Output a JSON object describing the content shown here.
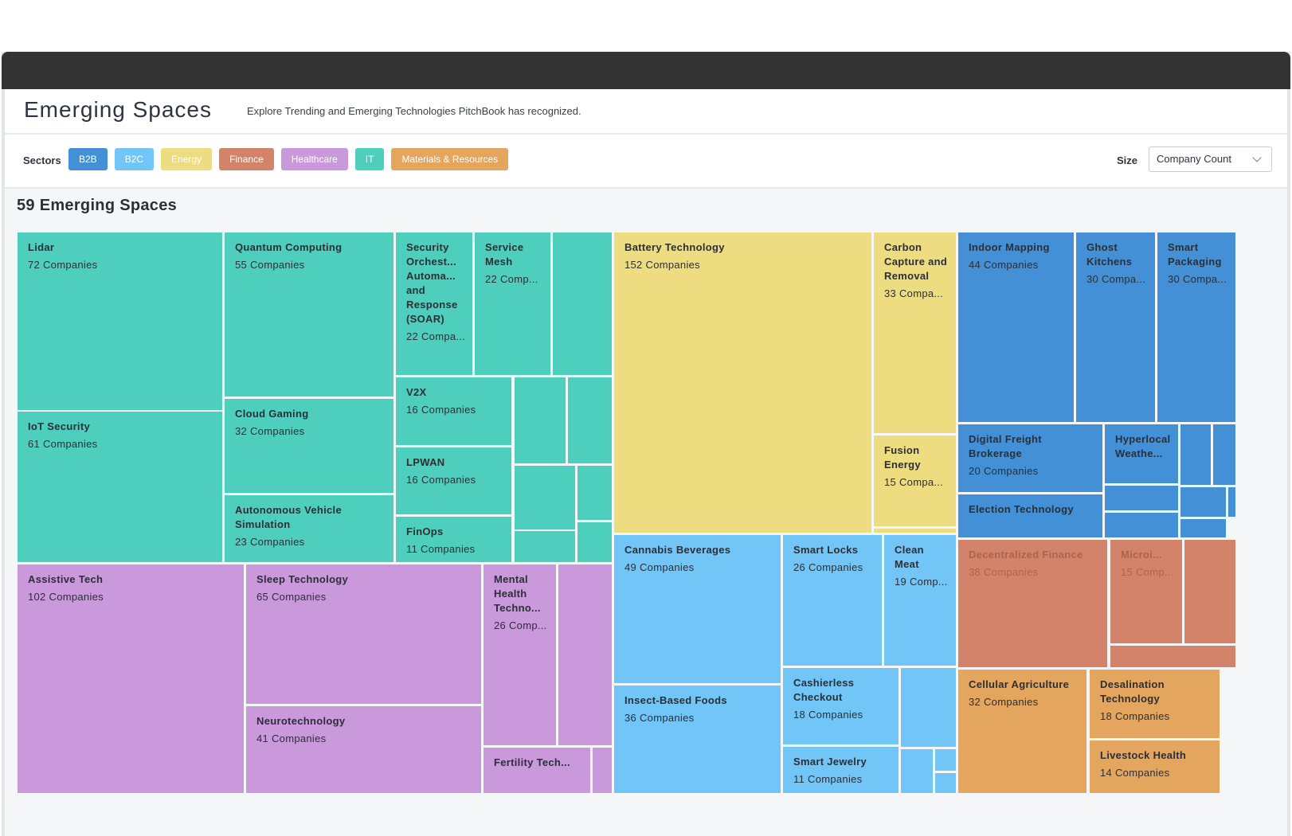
{
  "header": {
    "title": "Emerging Spaces",
    "subtitle": "Explore Trending and Emerging Technologies PitchBook has recognized."
  },
  "filters": {
    "sectors_label": "Sectors",
    "sectors": [
      {
        "label": "B2B",
        "color": "#4490d6"
      },
      {
        "label": "B2C",
        "color": "#72c5f7"
      },
      {
        "label": "Energy",
        "color": "#eedc80"
      },
      {
        "label": "Finance",
        "color": "#d4836b"
      },
      {
        "label": "Healthcare",
        "color": "#c999dc"
      },
      {
        "label": "IT",
        "color": "#4ecfbd"
      },
      {
        "label": "Materials & Resources",
        "color": "#e4a65e"
      }
    ],
    "size_label": "Size",
    "size_value": "Company Count"
  },
  "summary": {
    "count_title": "59 Emerging Spaces"
  },
  "colors": {
    "IT": "#4ecfbd",
    "Healthcare": "#c999dc",
    "Energy": "#eedc80",
    "B2C": "#72c5f7",
    "B2B": "#4490d6",
    "Finance": "#d4836b",
    "Materials": "#e4a65e"
  },
  "tiles": [
    {
      "sector": "IT",
      "name": "Lidar",
      "count": "72 Companies"
    },
    {
      "sector": "IT",
      "name": "IoT Security",
      "count": "61 Companies"
    },
    {
      "sector": "IT",
      "name": "Quantum Computing",
      "count": "55 Companies"
    },
    {
      "sector": "IT",
      "name": "Cloud Gaming",
      "count": "32 Companies"
    },
    {
      "sector": "IT",
      "name": "Autonomous Vehicle Simulation",
      "count": "23 Companies"
    },
    {
      "sector": "IT",
      "name": "Security Orchest... Automa... and Response (SOAR)",
      "count": "22 Compa..."
    },
    {
      "sector": "IT",
      "name": "Service Mesh",
      "count": "22 Comp..."
    },
    {
      "sector": "IT",
      "name": "",
      "count": ""
    },
    {
      "sector": "IT",
      "name": "V2X",
      "count": "16 Companies"
    },
    {
      "sector": "IT",
      "name": "LPWAN",
      "count": "16 Companies"
    },
    {
      "sector": "IT",
      "name": "FinOps",
      "count": "11 Companies"
    },
    {
      "sector": "IT",
      "name": "",
      "count": ""
    },
    {
      "sector": "IT",
      "name": "",
      "count": ""
    },
    {
      "sector": "IT",
      "name": "",
      "count": ""
    },
    {
      "sector": "IT",
      "name": "",
      "count": ""
    },
    {
      "sector": "IT",
      "name": "",
      "count": ""
    },
    {
      "sector": "IT",
      "name": "",
      "count": ""
    },
    {
      "sector": "Healthcare",
      "name": "Assistive Tech",
      "count": "102 Companies"
    },
    {
      "sector": "Healthcare",
      "name": "Sleep Technology",
      "count": "65 Companies"
    },
    {
      "sector": "Healthcare",
      "name": "Neurotechnology",
      "count": "41 Companies"
    },
    {
      "sector": "Healthcare",
      "name": "Mental Health Techno...",
      "count": "26 Comp..."
    },
    {
      "sector": "Healthcare",
      "name": "",
      "count": ""
    },
    {
      "sector": "Healthcare",
      "name": "Fertility Tech...",
      "count": ""
    },
    {
      "sector": "Healthcare",
      "name": "",
      "count": ""
    },
    {
      "sector": "Energy",
      "name": "Battery Technology",
      "count": "152 Companies"
    },
    {
      "sector": "Energy",
      "name": "Carbon Capture and Removal",
      "count": "33 Compa..."
    },
    {
      "sector": "Energy",
      "name": "Fusion Energy",
      "count": "15 Compa..."
    },
    {
      "sector": "Energy",
      "name": "",
      "count": ""
    },
    {
      "sector": "B2C",
      "name": "Cannabis Beverages",
      "count": "49 Companies"
    },
    {
      "sector": "B2C",
      "name": "Insect-Based Foods",
      "count": "36 Companies"
    },
    {
      "sector": "B2C",
      "name": "Smart Locks",
      "count": "26 Companies"
    },
    {
      "sector": "B2C",
      "name": "Clean Meat",
      "count": "19 Comp..."
    },
    {
      "sector": "B2C",
      "name": "Cashierless Checkout",
      "count": "18 Companies"
    },
    {
      "sector": "B2C",
      "name": "",
      "count": ""
    },
    {
      "sector": "B2C",
      "name": "Smart Jewelry",
      "count": "11 Companies"
    },
    {
      "sector": "B2C",
      "name": "",
      "count": ""
    },
    {
      "sector": "B2C",
      "name": "",
      "count": ""
    },
    {
      "sector": "B2C",
      "name": "",
      "count": ""
    },
    {
      "sector": "B2B",
      "name": "Indoor Mapping",
      "count": "44 Companies"
    },
    {
      "sector": "B2B",
      "name": "Ghost Kitchens",
      "count": "30 Compa..."
    },
    {
      "sector": "B2B",
      "name": "Smart Packaging",
      "count": "30 Compa..."
    },
    {
      "sector": "B2B",
      "name": "Digital Freight Brokerage",
      "count": "20 Companies"
    },
    {
      "sector": "B2B",
      "name": "Hyperlocal Weathe...",
      "count": ""
    },
    {
      "sector": "B2B",
      "name": "",
      "count": ""
    },
    {
      "sector": "B2B",
      "name": "",
      "count": ""
    },
    {
      "sector": "B2B",
      "name": "Election Technology",
      "count": ""
    },
    {
      "sector": "B2B",
      "name": "",
      "count": ""
    },
    {
      "sector": "B2B",
      "name": "",
      "count": ""
    },
    {
      "sector": "B2B",
      "name": "",
      "count": ""
    },
    {
      "sector": "B2B",
      "name": "",
      "count": ""
    },
    {
      "sector": "B2B",
      "name": "",
      "count": ""
    },
    {
      "sector": "Finance",
      "name": "Decentralized Finance",
      "count": "38 Companies",
      "muted": true
    },
    {
      "sector": "Finance",
      "name": "Microi...",
      "count": "15 Comp...",
      "muted": true
    },
    {
      "sector": "Finance",
      "name": "",
      "count": ""
    },
    {
      "sector": "Finance",
      "name": "",
      "count": ""
    },
    {
      "sector": "Materials",
      "name": "Cellular Agriculture",
      "count": "32 Companies"
    },
    {
      "sector": "Materials",
      "name": "Desalination Technology",
      "count": "18 Companies"
    },
    {
      "sector": "Materials",
      "name": "Livestock Health",
      "count": "14 Companies"
    }
  ]
}
